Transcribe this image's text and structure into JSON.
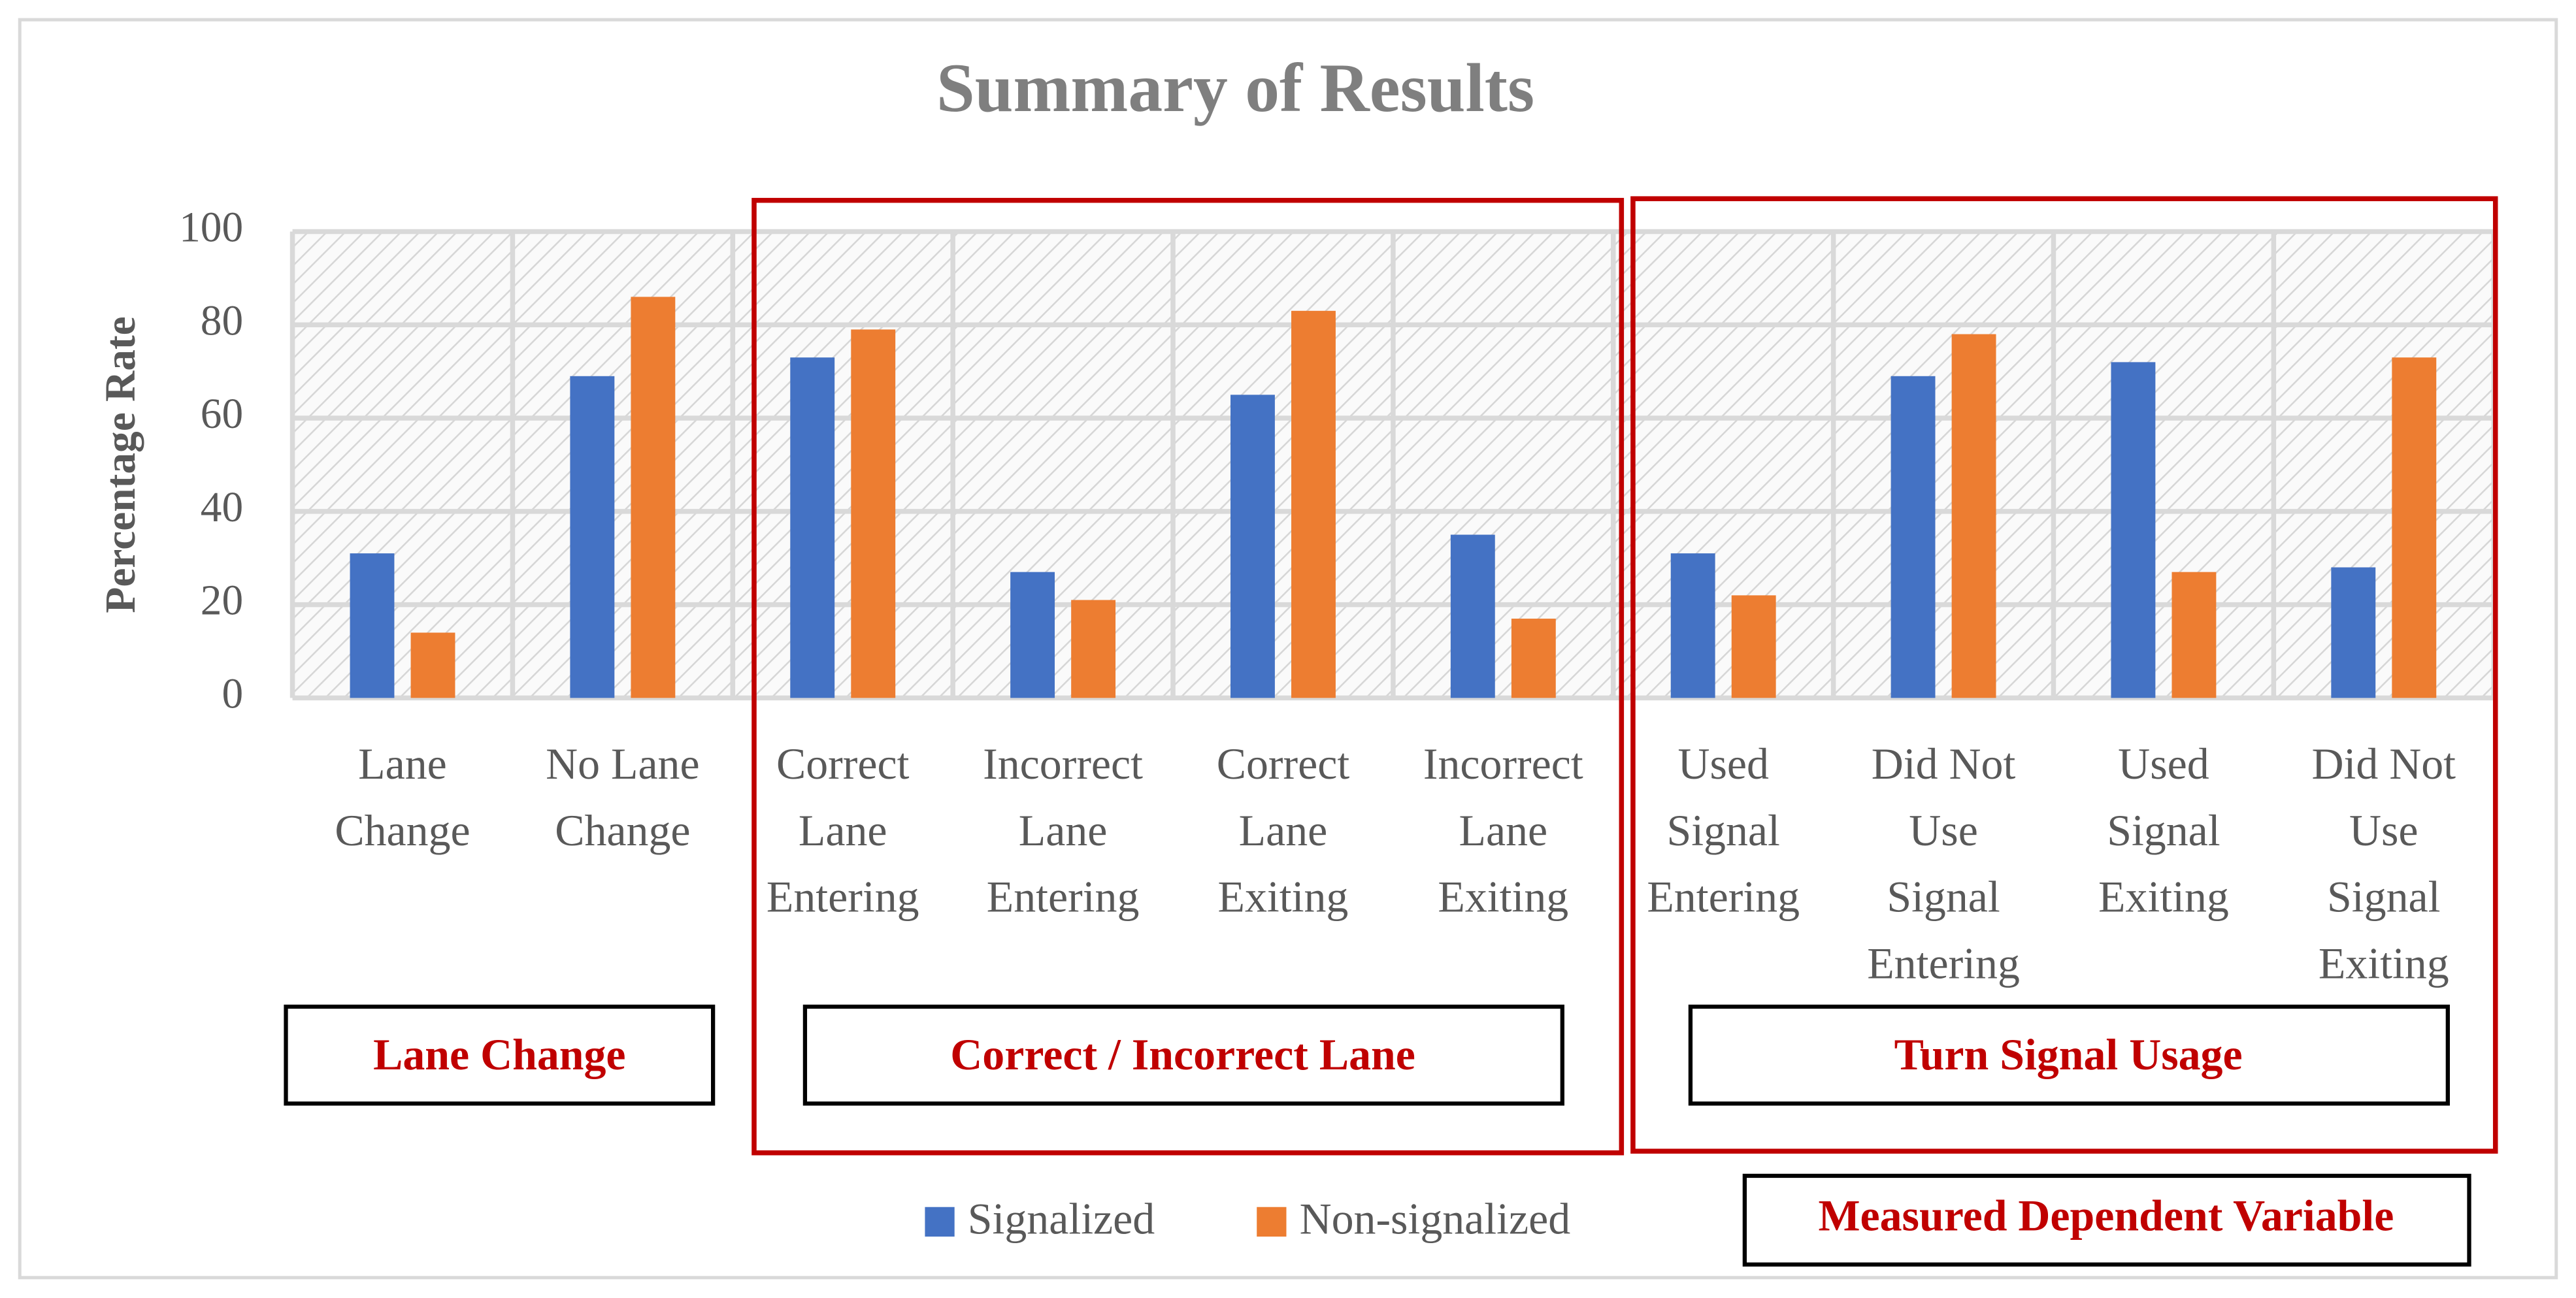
{
  "chart_data": {
    "type": "bar",
    "title": "Summary of Results",
    "y_label": "Percentage Rate",
    "categories": [
      [
        "Lane",
        "Change"
      ],
      [
        "No Lane",
        "Change"
      ],
      [
        "Correct",
        "Lane",
        "Entering"
      ],
      [
        "Incorrect",
        "Lane",
        "Entering"
      ],
      [
        "Correct",
        "Lane",
        "Exiting"
      ],
      [
        "Incorrect",
        "Lane",
        "Exiting"
      ],
      [
        "Used",
        "Signal",
        "Entering"
      ],
      [
        "Did Not",
        "Use",
        "Signal",
        "Entering"
      ],
      [
        "Used",
        "Signal",
        "Exiting"
      ],
      [
        "Did Not",
        "Use",
        "Signal",
        "Exiting"
      ]
    ],
    "series": [
      {
        "name": "Signalized",
        "color": "#4472c4",
        "values": [
          31,
          69,
          73,
          27,
          65,
          35,
          31,
          69,
          72,
          28
        ]
      },
      {
        "name": "Non-signalized",
        "color": "#ed7d31",
        "values": [
          14,
          86,
          79,
          21,
          83,
          17,
          22,
          78,
          27,
          73
        ]
      }
    ],
    "ylim": [
      0,
      100
    ],
    "yticks": [
      0,
      20,
      40,
      60,
      80,
      100
    ],
    "grid": true,
    "annotations": [
      "Lane Change",
      "Correct / Incorrect Lane",
      "Turn Signal Usage",
      "Measured Dependent Variable"
    ]
  }
}
